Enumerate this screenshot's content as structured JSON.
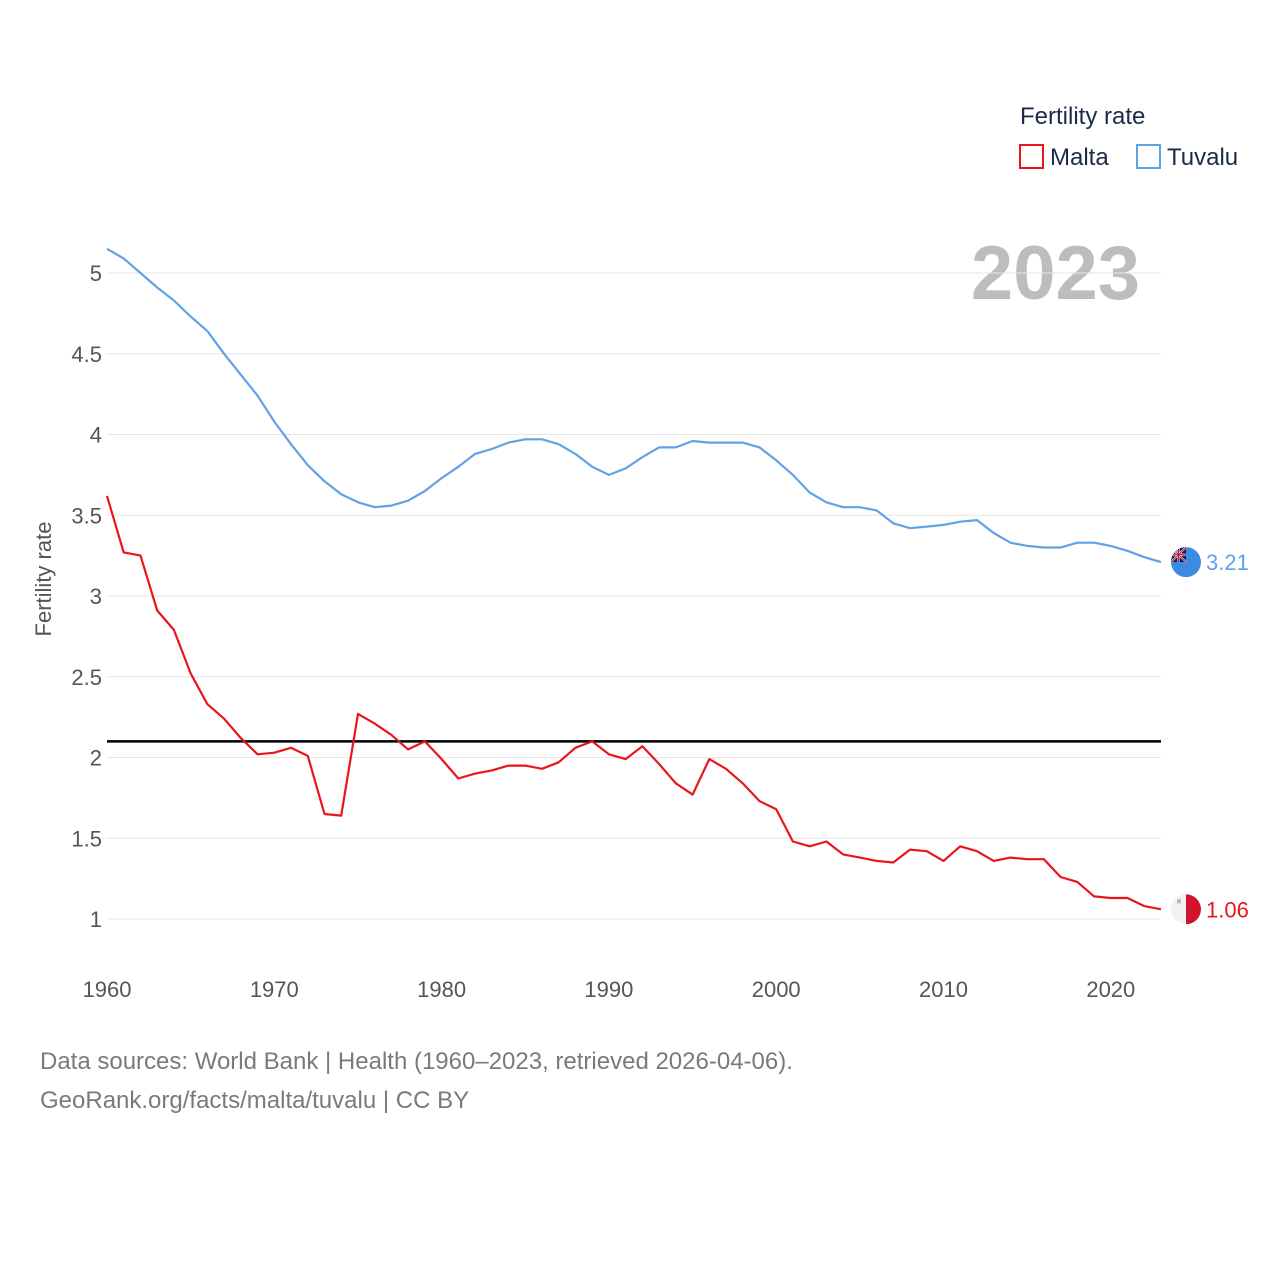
{
  "chart_data": {
    "type": "line",
    "title": "",
    "legend_title": "Fertility rate",
    "ylabel": "Fertility rate",
    "xlabel": "",
    "year_label": "2023",
    "xlim": [
      1960,
      2023
    ],
    "ylim": [
      0.7,
      5.3
    ],
    "x_ticks": [
      1960,
      1970,
      1980,
      1990,
      2000,
      2010,
      2020
    ],
    "y_ticks": [
      1,
      1.5,
      2,
      2.5,
      3,
      3.5,
      4,
      4.5,
      5
    ],
    "y_tick_labels": [
      "1",
      "1.5",
      "2",
      "2.5",
      "3",
      "3.5",
      "4",
      "4.5",
      "5"
    ],
    "reference_line": 2.1,
    "x": [
      1960,
      1961,
      1962,
      1963,
      1964,
      1965,
      1966,
      1967,
      1968,
      1969,
      1970,
      1971,
      1972,
      1973,
      1974,
      1975,
      1976,
      1977,
      1978,
      1979,
      1980,
      1981,
      1982,
      1983,
      1984,
      1985,
      1986,
      1987,
      1988,
      1989,
      1990,
      1991,
      1992,
      1993,
      1994,
      1995,
      1996,
      1997,
      1998,
      1999,
      2000,
      2001,
      2002,
      2003,
      2004,
      2005,
      2006,
      2007,
      2008,
      2009,
      2010,
      2011,
      2012,
      2013,
      2014,
      2015,
      2016,
      2017,
      2018,
      2019,
      2020,
      2021,
      2022,
      2023
    ],
    "series": [
      {
        "name": "Malta",
        "color": "#e8151b",
        "end_label": "1.06",
        "flag": "malta-flag-icon",
        "values": [
          3.62,
          3.27,
          3.25,
          2.91,
          2.79,
          2.52,
          2.33,
          2.24,
          2.12,
          2.02,
          2.03,
          2.06,
          2.01,
          1.65,
          1.64,
          2.27,
          2.21,
          2.14,
          2.05,
          2.1,
          1.99,
          1.87,
          1.9,
          1.92,
          1.95,
          1.95,
          1.93,
          1.97,
          2.06,
          2.1,
          2.02,
          1.99,
          2.07,
          1.96,
          1.84,
          1.77,
          1.99,
          1.93,
          1.84,
          1.73,
          1.68,
          1.48,
          1.45,
          1.48,
          1.4,
          1.38,
          1.36,
          1.35,
          1.43,
          1.42,
          1.36,
          1.45,
          1.42,
          1.36,
          1.38,
          1.37,
          1.37,
          1.26,
          1.23,
          1.14,
          1.13,
          1.13,
          1.08,
          1.06
        ]
      },
      {
        "name": "Tuvalu",
        "color": "#5fa3e6",
        "end_label": "3.21",
        "flag": "tuvalu-flag-icon",
        "values": [
          5.15,
          5.09,
          5.0,
          4.91,
          4.83,
          4.73,
          4.64,
          4.5,
          4.37,
          4.24,
          4.08,
          3.94,
          3.81,
          3.71,
          3.63,
          3.58,
          3.55,
          3.56,
          3.59,
          3.65,
          3.73,
          3.8,
          3.88,
          3.91,
          3.95,
          3.97,
          3.97,
          3.94,
          3.88,
          3.8,
          3.75,
          3.79,
          3.86,
          3.92,
          3.92,
          3.96,
          3.95,
          3.95,
          3.95,
          3.92,
          3.84,
          3.75,
          3.64,
          3.58,
          3.55,
          3.55,
          3.53,
          3.45,
          3.42,
          3.43,
          3.44,
          3.46,
          3.47,
          3.39,
          3.33,
          3.31,
          3.3,
          3.3,
          3.33,
          3.33,
          3.31,
          3.28,
          3.24,
          3.21
        ]
      }
    ]
  },
  "footer": {
    "source_line": "Data sources: World Bank | Health (1960–2023, retrieved 2026-04-06).",
    "credit_line": "GeoRank.org/facts/malta/tuvalu | CC BY"
  }
}
